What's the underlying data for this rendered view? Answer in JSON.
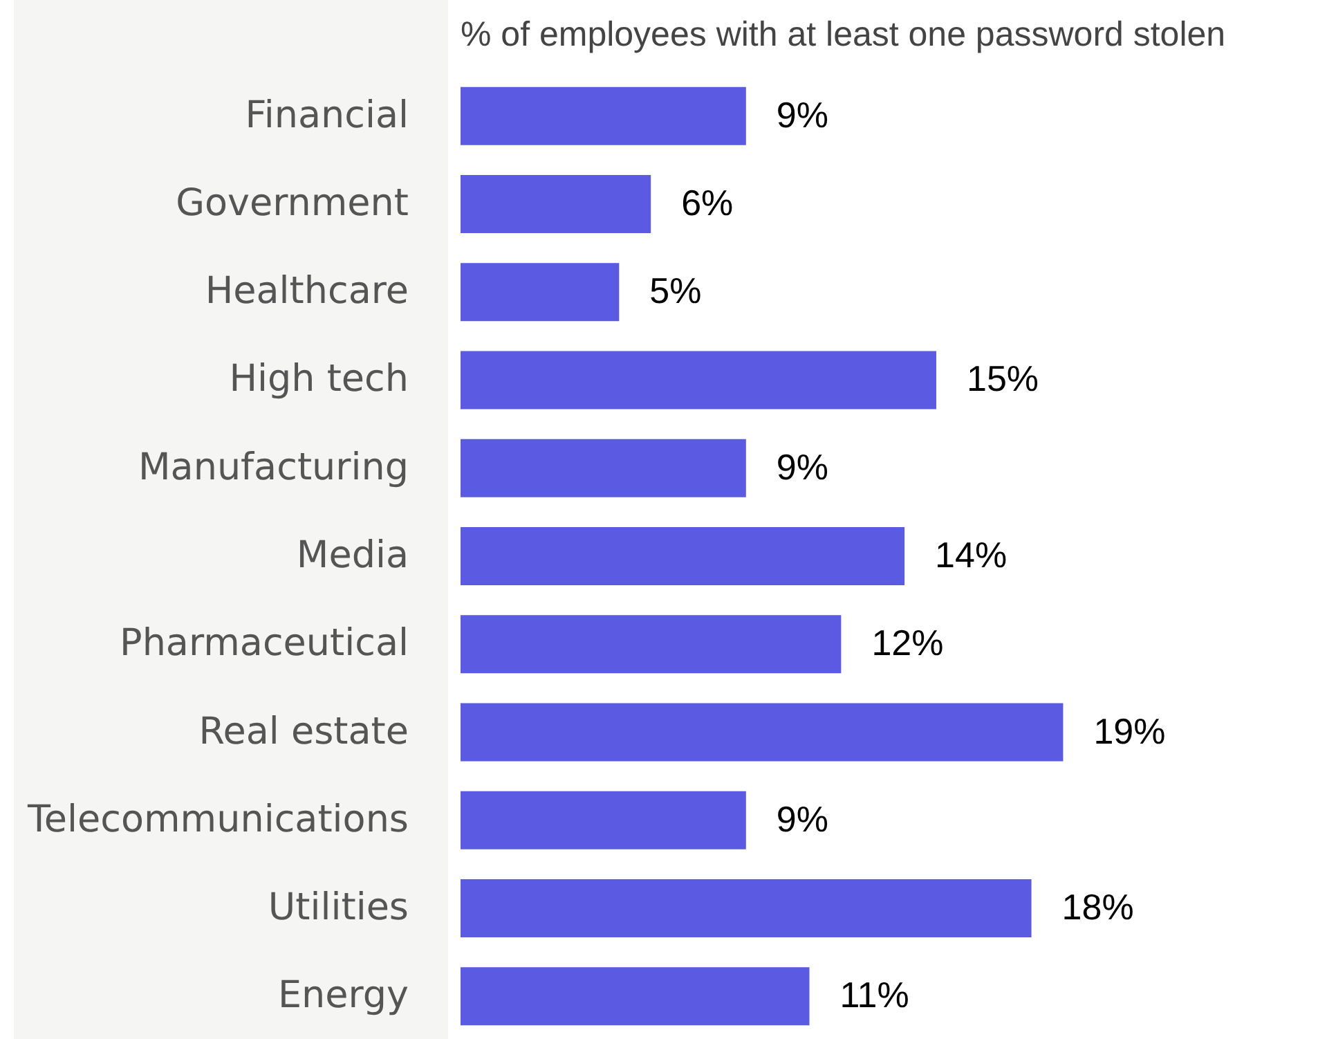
{
  "chart_data": {
    "type": "bar",
    "orientation": "horizontal",
    "title": "% of employees with at least one password stolen",
    "categories": [
      "Financial",
      "Government",
      "Healthcare",
      "High tech",
      "Manufacturing",
      "Media",
      "Pharmaceutical",
      "Real estate",
      "Telecommunications",
      "Utilities",
      "Energy"
    ],
    "values": [
      9,
      6,
      5,
      15,
      9,
      14,
      12,
      19,
      9,
      18,
      11
    ],
    "value_labels": [
      "9%",
      "6%",
      "5%",
      "15%",
      "9%",
      "14%",
      "12%",
      "19%",
      "9%",
      "18%",
      "11%"
    ],
    "color": "#5a5ae2"
  }
}
